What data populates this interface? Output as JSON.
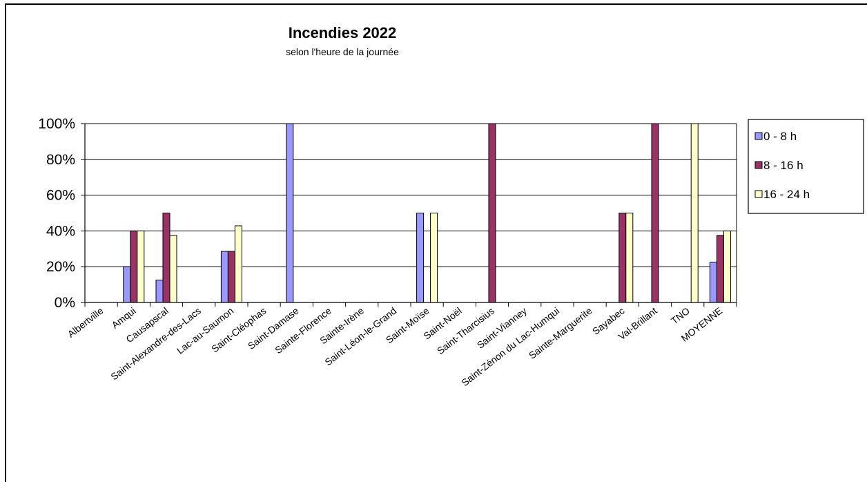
{
  "chart_data": {
    "type": "bar",
    "title": "Incendies 2022",
    "subtitle": "selon l'heure de la journée",
    "xlabel": "",
    "ylabel": "",
    "ylim": [
      0,
      1
    ],
    "y_ticks": [
      "0%",
      "20%",
      "40%",
      "60%",
      "80%",
      "100%"
    ],
    "grid": true,
    "legend_position": "right",
    "categories": [
      "Albertville",
      "Amqui",
      "Causapscal",
      "Saint-Alexandre-des-Lacs",
      "Lac-au-Saumon",
      "Saint-Cléophas",
      "Saint-Damase",
      "Sainte-Florence",
      "Sainte-Irène",
      "Saint-Léon-le-Grand",
      "Saint-Moïse",
      "Saint-Noël",
      "Saint-Tharcisius",
      "Saint-Vianney",
      "Saint-Zénon du Lac-Humqui",
      "Sainte-Marguerite",
      "Sayabec",
      "Val-Brillant",
      "TNO",
      "MOYENNE"
    ],
    "series": [
      {
        "name": "0 - 8 h",
        "color": "#9999ff",
        "values": [
          0,
          0.2,
          0.125,
          0,
          0.2857,
          0,
          1.0,
          0,
          0,
          0,
          0.5,
          0,
          0,
          0,
          0,
          0,
          0,
          0,
          0,
          0.225
        ]
      },
      {
        "name": "8 - 16 h",
        "color": "#993366",
        "values": [
          0,
          0.4,
          0.5,
          0,
          0.2857,
          0,
          0,
          0,
          0,
          0,
          0,
          0,
          1.0,
          0,
          0,
          0,
          0.5,
          1.0,
          0,
          0.375
        ]
      },
      {
        "name": "16 - 24 h",
        "color": "#ffffcc",
        "values": [
          0,
          0.4,
          0.375,
          0,
          0.4286,
          0,
          0,
          0,
          0,
          0,
          0.5,
          0,
          0,
          0,
          0,
          0,
          0.5,
          0,
          1.0,
          0.4
        ]
      }
    ]
  }
}
